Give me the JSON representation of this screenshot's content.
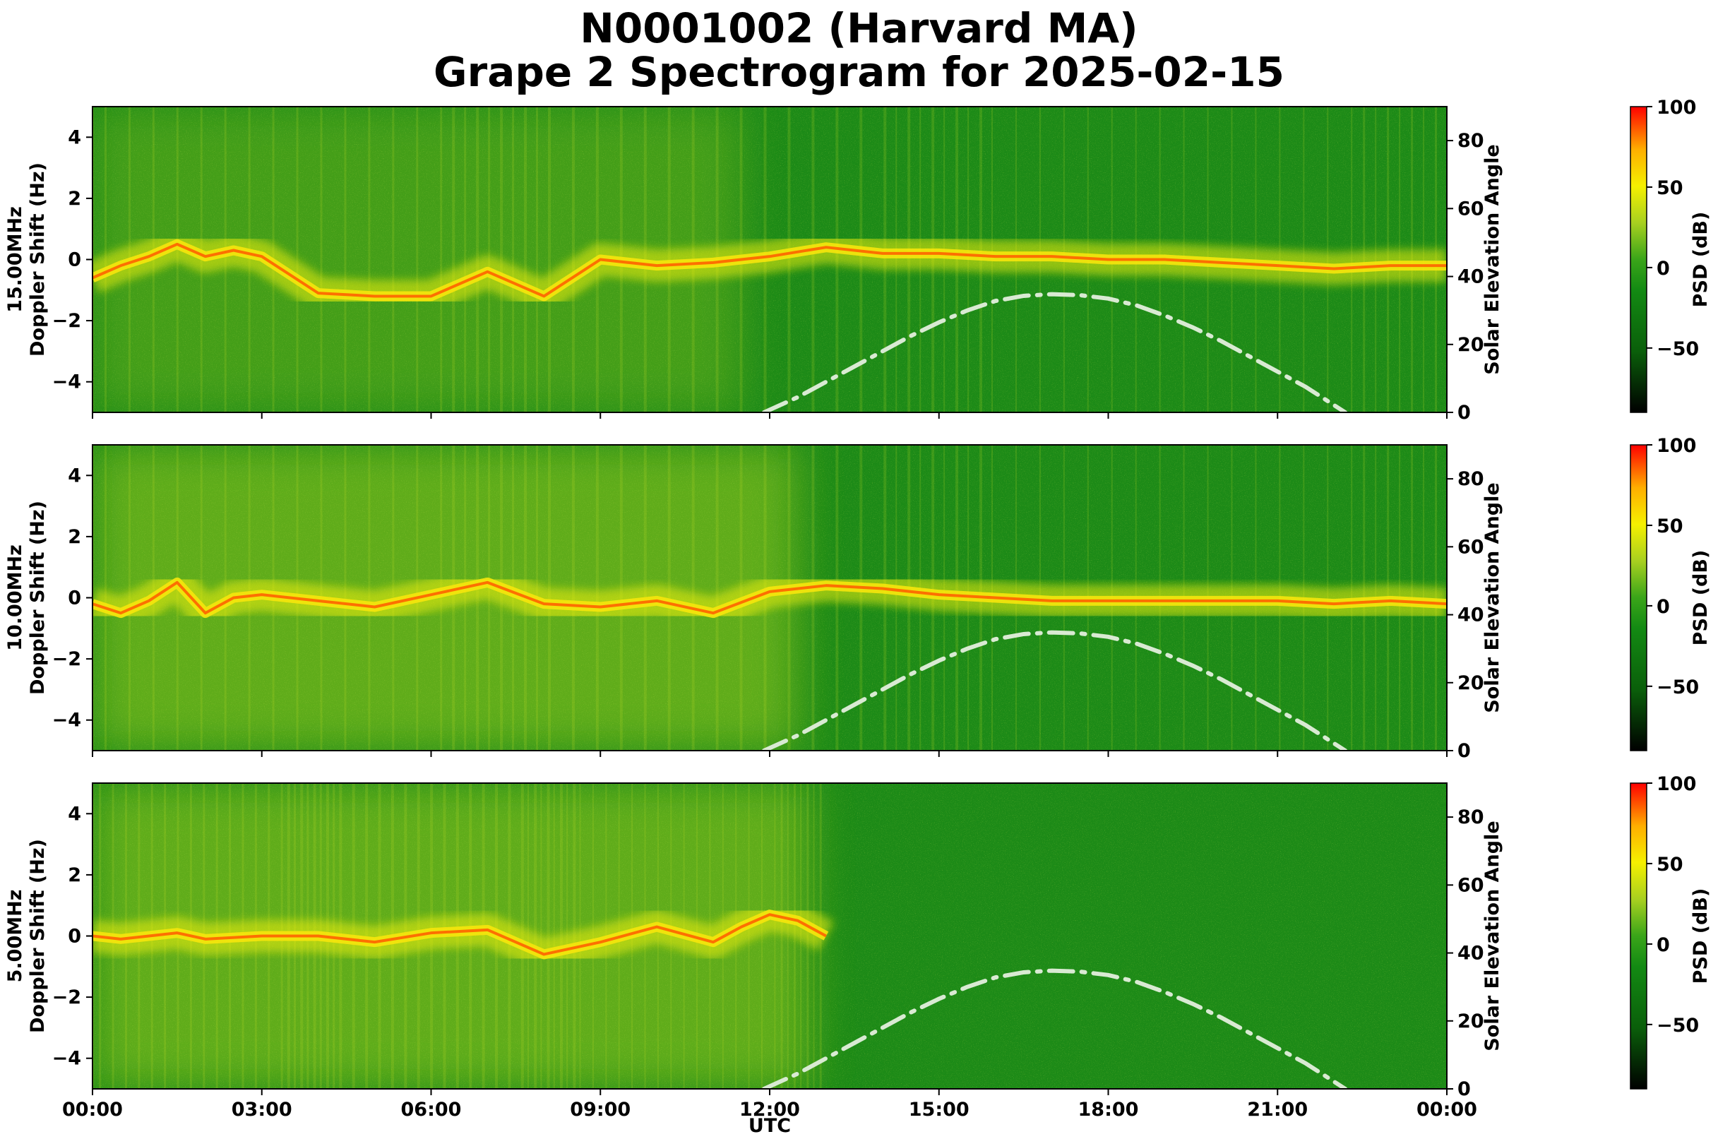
{
  "figure": {
    "title_line1": "N0001002 (Harvard MA)",
    "title_line2": "Grape 2 Spectrogram for 2025-02-15",
    "xlabel": "UTC"
  },
  "chart_data": [
    {
      "type": "heatmap",
      "name": "15.00MHz",
      "ylabel_line1": "15.00MHz",
      "ylabel_line2": "Doppler Shift (Hz)",
      "ylim": [
        -5,
        5
      ],
      "yticks": [
        "4",
        "2",
        "0",
        "−2",
        "−4"
      ],
      "ytick_values": [
        4,
        2,
        0,
        -2,
        -4
      ],
      "right_ylabel": "Solar Elevation Angle",
      "right_ylim": [
        0,
        90
      ],
      "right_yticks": [
        80,
        60,
        40,
        20,
        0
      ],
      "colorbar_label": "PSD (dB)",
      "colorbar_range": [
        -90,
        100
      ],
      "colorbar_ticks": [
        "100",
        "50",
        "0",
        "−50"
      ],
      "colorbar_tick_values": [
        100,
        50,
        0,
        -50
      ],
      "doppler_trace": [
        [
          0,
          -0.6
        ],
        [
          0.5,
          -0.2
        ],
        [
          1,
          0.1
        ],
        [
          1.5,
          0.5
        ],
        [
          2,
          0.1
        ],
        [
          2.5,
          0.3
        ],
        [
          3,
          0.1
        ],
        [
          4,
          -1.1
        ],
        [
          5,
          -1.2
        ],
        [
          6,
          -1.2
        ],
        [
          7,
          -0.4
        ],
        [
          8,
          -1.2
        ],
        [
          9,
          0
        ],
        [
          10,
          -0.2
        ],
        [
          11,
          -0.1
        ],
        [
          12,
          0.1
        ],
        [
          13,
          0.4
        ],
        [
          14,
          0.2
        ],
        [
          15,
          0.2
        ],
        [
          16,
          0.1
        ],
        [
          17,
          0.1
        ],
        [
          18,
          0
        ],
        [
          19,
          0
        ],
        [
          20,
          -0.1
        ],
        [
          21,
          -0.2
        ],
        [
          22,
          -0.3
        ],
        [
          23,
          -0.2
        ],
        [
          24,
          -0.2
        ]
      ]
    },
    {
      "type": "heatmap",
      "name": "10.00MHz",
      "ylabel_line1": "10.00MHz",
      "ylabel_line2": "Doppler Shift (Hz)",
      "ylim": [
        -5,
        5
      ],
      "yticks": [
        "4",
        "2",
        "0",
        "−2",
        "−4"
      ],
      "ytick_values": [
        4,
        2,
        0,
        -2,
        -4
      ],
      "right_ylabel": "Solar Elevation Angle",
      "right_ylim": [
        0,
        90
      ],
      "right_yticks": [
        80,
        60,
        40,
        20,
        0
      ],
      "colorbar_label": "PSD (dB)",
      "colorbar_range": [
        -90,
        100
      ],
      "colorbar_ticks": [
        "100",
        "50",
        "0",
        "−50"
      ],
      "colorbar_tick_values": [
        100,
        50,
        0,
        -50
      ],
      "doppler_trace": [
        [
          0,
          -0.2
        ],
        [
          0.5,
          -0.5
        ],
        [
          1,
          -0.1
        ],
        [
          1.5,
          0.5
        ],
        [
          2,
          -0.5
        ],
        [
          2.5,
          0
        ],
        [
          3,
          0.1
        ],
        [
          4,
          -0.1
        ],
        [
          5,
          -0.3
        ],
        [
          6,
          0.1
        ],
        [
          7,
          0.5
        ],
        [
          8,
          -0.2
        ],
        [
          9,
          -0.3
        ],
        [
          10,
          -0.1
        ],
        [
          11,
          -0.5
        ],
        [
          12,
          0.2
        ],
        [
          13,
          0.4
        ],
        [
          14,
          0.3
        ],
        [
          15,
          0.1
        ],
        [
          16,
          0
        ],
        [
          17,
          -0.1
        ],
        [
          18,
          -0.1
        ],
        [
          19,
          -0.1
        ],
        [
          20,
          -0.1
        ],
        [
          21,
          -0.1
        ],
        [
          22,
          -0.2
        ],
        [
          23,
          -0.1
        ],
        [
          24,
          -0.2
        ]
      ]
    },
    {
      "type": "heatmap",
      "name": "5.00MHz",
      "ylabel_line1": "5.00MHz",
      "ylabel_line2": "Doppler Shift (Hz)",
      "ylim": [
        -5,
        5
      ],
      "yticks": [
        "4",
        "2",
        "0",
        "−2",
        "−4"
      ],
      "ytick_values": [
        4,
        2,
        0,
        -2,
        -4
      ],
      "right_ylabel": "Solar Elevation Angle",
      "right_ylim": [
        0,
        90
      ],
      "right_yticks": [
        80,
        60,
        40,
        20,
        0
      ],
      "colorbar_label": "PSD (dB)",
      "colorbar_range": [
        -90,
        100
      ],
      "colorbar_ticks": [
        "100",
        "50",
        "0",
        "−50"
      ],
      "colorbar_tick_values": [
        100,
        50,
        0,
        -50
      ],
      "doppler_trace": [
        [
          0,
          0
        ],
        [
          0.5,
          -0.1
        ],
        [
          1,
          0
        ],
        [
          1.5,
          0.1
        ],
        [
          2,
          -0.1
        ],
        [
          3,
          0
        ],
        [
          4,
          0
        ],
        [
          5,
          -0.2
        ],
        [
          6,
          0.1
        ],
        [
          7,
          0.2
        ],
        [
          8,
          -0.6
        ],
        [
          9,
          -0.2
        ],
        [
          10,
          0.3
        ],
        [
          11,
          -0.2
        ],
        [
          11.5,
          0.3
        ],
        [
          12,
          0.7
        ],
        [
          12.5,
          0.5
        ],
        [
          13,
          0
        ]
      ]
    }
  ],
  "shared_x": {
    "xlim": [
      0,
      24
    ],
    "xticks": [
      "00:00",
      "03:00",
      "06:00",
      "09:00",
      "12:00",
      "15:00",
      "18:00",
      "21:00",
      "00:00"
    ],
    "xtick_values": [
      0,
      3,
      6,
      9,
      12,
      15,
      18,
      21,
      24
    ]
  },
  "solar_elevation_curve": {
    "x_utc_hours": [
      11.9,
      12.5,
      13,
      13.5,
      14,
      14.5,
      15,
      15.5,
      16,
      16.5,
      17,
      17.5,
      18,
      18.5,
      19,
      19.5,
      20,
      20.5,
      21,
      21.5,
      22.2
    ],
    "elevation_deg": [
      0,
      4.5,
      9,
      13.5,
      18,
      22.5,
      26.5,
      30,
      32.8,
      34.3,
      34.8,
      34.5,
      33.5,
      31.5,
      28.5,
      25,
      21,
      16.5,
      12,
      7.5,
      0
    ],
    "line_color": "#d9ead3"
  },
  "colormap": [
    "#000000",
    "#0a5f0a",
    "#138a13",
    "#3aa519",
    "#a8d020",
    "#f5f000",
    "#ffae00",
    "#ff0000"
  ]
}
